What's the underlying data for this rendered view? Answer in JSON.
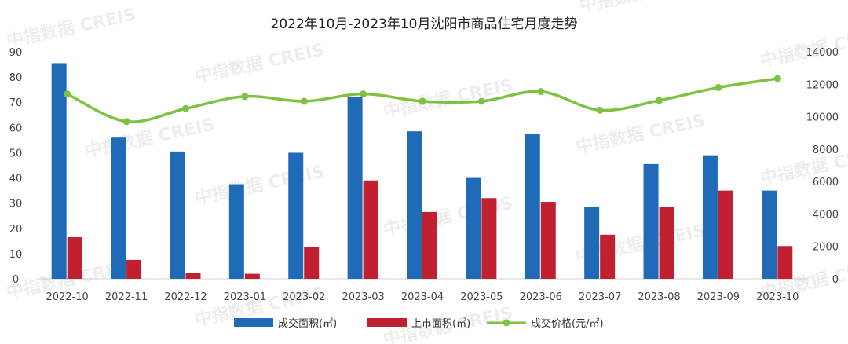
{
  "chart_data": {
    "type": "bar",
    "title": "2022年10月-2023年10月沈阳市商品住宅月度走势",
    "categories": [
      "2022-10",
      "2022-11",
      "2022-12",
      "2023-01",
      "2023-02",
      "2023-03",
      "2023-04",
      "2023-05",
      "2023-06",
      "2023-07",
      "2023-08",
      "2023-09",
      "2023-10"
    ],
    "series": [
      {
        "name": "成交面积(㎡)",
        "type": "bar",
        "axis": "left",
        "color": "#1F6BB7",
        "values": [
          85.5,
          56,
          50.5,
          37.5,
          50,
          72,
          58.5,
          40,
          57.5,
          28.5,
          45.5,
          49,
          35
        ]
      },
      {
        "name": "上市面积(㎡)",
        "type": "bar",
        "axis": "left",
        "color": "#C0202F",
        "values": [
          16.5,
          7.5,
          2.5,
          2,
          12.5,
          39,
          26.5,
          32,
          30.5,
          17.5,
          28.5,
          35,
          13
        ]
      },
      {
        "name": "成交价格(元/㎡)",
        "type": "line",
        "axis": "right",
        "color": "#7DC242",
        "values": [
          11400,
          9700,
          10500,
          11250,
          10950,
          11400,
          10950,
          10950,
          11550,
          10400,
          11000,
          11800,
          12350
        ]
      }
    ],
    "y_left": {
      "min": 0,
      "max": 90,
      "ticks": [
        "0",
        "10",
        "20",
        "30",
        "40",
        "50",
        "60",
        "70",
        "80",
        "90"
      ]
    },
    "y_right": {
      "min": 0,
      "max": 14000,
      "ticks": [
        "0",
        "2000",
        "4000",
        "6000",
        "8000",
        "10000",
        "12000",
        "14000"
      ]
    },
    "legend_position": "bottom",
    "grid": false
  },
  "watermark": "中指数据 CREIS"
}
